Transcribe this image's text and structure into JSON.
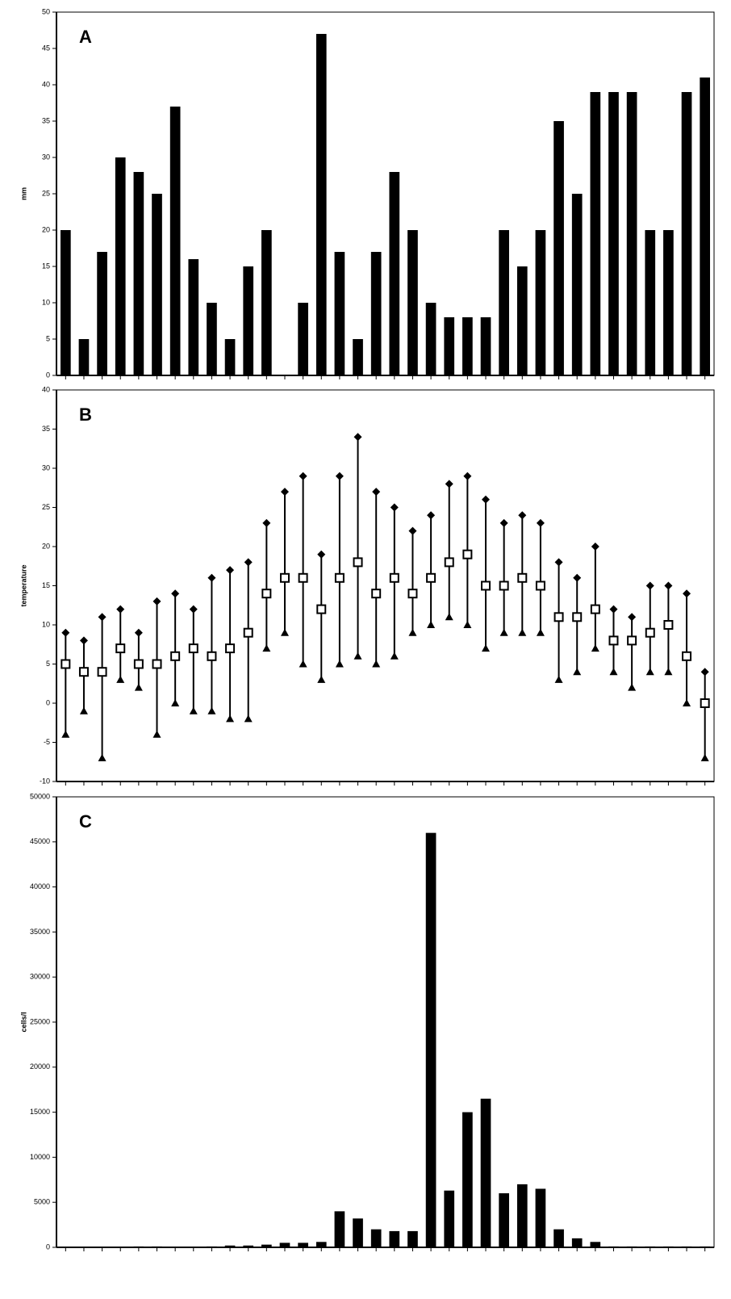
{
  "chart_data": [
    {
      "type": "bar",
      "panel_label": "A",
      "y_label": "mm",
      "categories": [
        null,
        null,
        null,
        null,
        null,
        null,
        null,
        null,
        null,
        null,
        null,
        null,
        null,
        null,
        null,
        null,
        null,
        null,
        null,
        null,
        null,
        null,
        null,
        null,
        null,
        null,
        null,
        null,
        null,
        null,
        null,
        null,
        null,
        null,
        null,
        null
      ],
      "values": [
        20,
        5,
        17,
        30,
        28,
        25,
        37,
        16,
        10,
        5,
        15,
        20,
        0,
        10,
        47,
        17,
        5,
        17,
        28,
        20,
        10,
        8,
        8,
        8,
        20,
        15,
        20,
        35,
        25,
        39,
        39,
        39,
        20,
        20,
        39,
        41
      ],
      "color": "#000000",
      "ylim": [
        0,
        50
      ],
      "yticks": [
        0,
        5,
        10,
        15,
        20,
        25,
        30,
        35,
        40,
        45,
        50
      ]
    },
    {
      "type": "errorbar",
      "panel_label": "B",
      "y_label": "temperature",
      "categories": [
        null,
        null,
        null,
        null,
        null,
        null,
        null,
        null,
        null,
        null,
        null,
        null,
        null,
        null,
        null,
        null,
        null,
        null,
        null,
        null,
        null,
        null,
        null,
        null,
        null,
        null,
        null,
        null,
        null,
        null,
        null,
        null,
        null,
        null,
        null,
        null
      ],
      "values": [
        5,
        4,
        4,
        7,
        5,
        5,
        6,
        7,
        6,
        7,
        9,
        14,
        16,
        16,
        12,
        16,
        18,
        14,
        16,
        14,
        16,
        18,
        19,
        15,
        15,
        16,
        15,
        11,
        11,
        12,
        8,
        8,
        9,
        10,
        6,
        0
      ],
      "highs": [
        9,
        8,
        11,
        12,
        9,
        13,
        14,
        12,
        16,
        17,
        18,
        23,
        27,
        29,
        19,
        29,
        34,
        27,
        25,
        22,
        24,
        28,
        29,
        26,
        23,
        24,
        23,
        18,
        16,
        20,
        12,
        11,
        15,
        15,
        14,
        4
      ],
      "lows": [
        -4,
        -1,
        -7,
        3,
        2,
        -4,
        0,
        -1,
        -1,
        -2,
        -2,
        7,
        9,
        5,
        3,
        5,
        6,
        5,
        6,
        9,
        10,
        11,
        10,
        7,
        9,
        9,
        9,
        3,
        4,
        7,
        4,
        2,
        4,
        4,
        0,
        -7
      ],
      "color": "#000000",
      "ylim": [
        -10,
        40
      ],
      "yticks": [
        -10,
        -5,
        0,
        5,
        10,
        15,
        20,
        25,
        30,
        35,
        40
      ]
    },
    {
      "type": "bar",
      "panel_label": "C",
      "y_label": "cells/l",
      "categories": [
        null,
        null,
        null,
        null,
        null,
        null,
        null,
        null,
        null,
        null,
        null,
        null,
        null,
        null,
        null,
        null,
        null,
        null,
        null,
        null,
        null,
        null,
        null,
        null,
        null,
        null,
        null,
        null,
        null,
        null,
        null,
        null,
        null,
        null,
        null,
        null
      ],
      "values": [
        50,
        50,
        50,
        50,
        100,
        100,
        50,
        50,
        100,
        200,
        200,
        300,
        500,
        500,
        600,
        4000,
        3200,
        2000,
        1800,
        1800,
        46000,
        6300,
        15000,
        16500,
        6000,
        7000,
        6500,
        2000,
        1000,
        600,
        100,
        100,
        100,
        100,
        100,
        100
      ],
      "color": "#000000",
      "ylim": [
        0,
        50000
      ],
      "yticks": [
        0,
        5000,
        10000,
        15000,
        20000,
        25000,
        30000,
        35000,
        40000,
        45000,
        50000
      ]
    }
  ]
}
